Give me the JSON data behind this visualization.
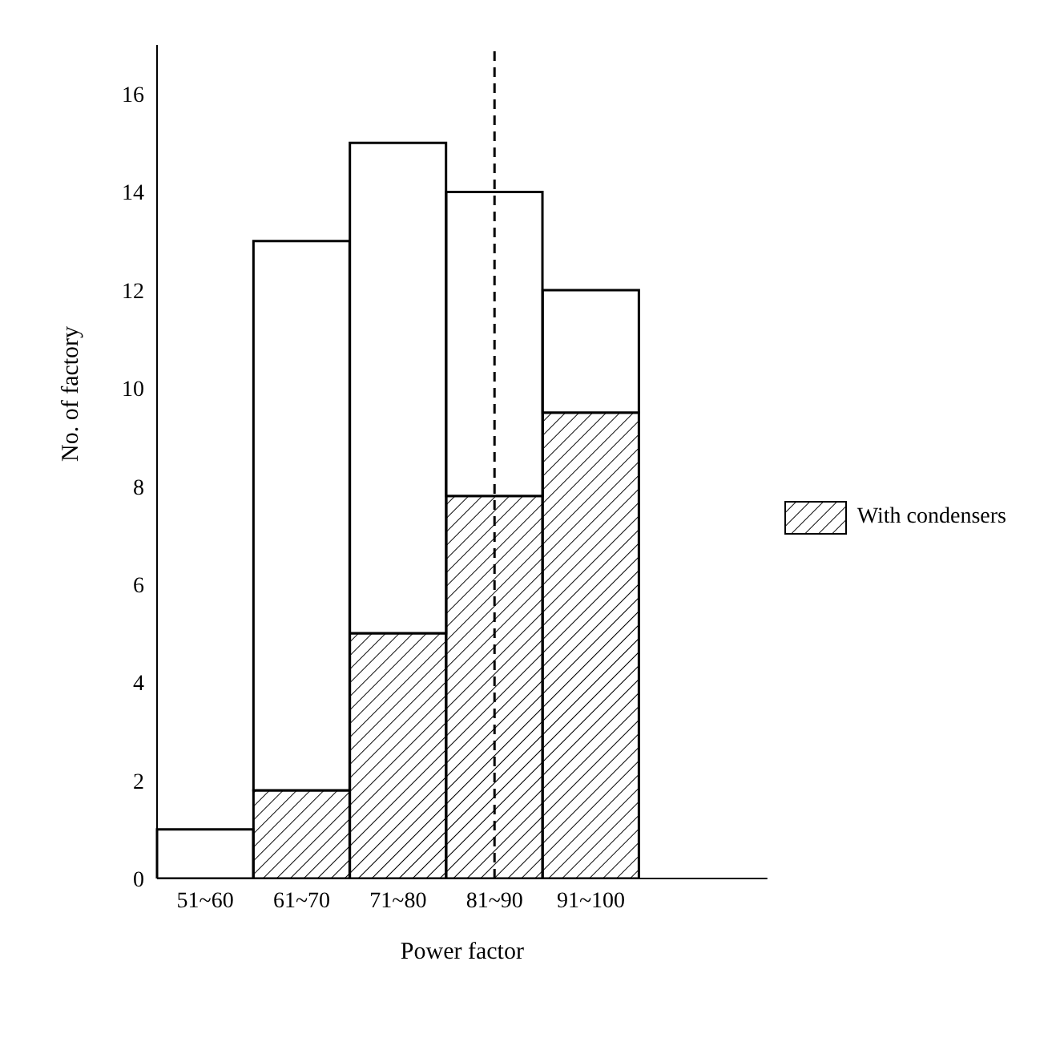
{
  "chart_data": {
    "type": "bar",
    "xlabel": "Power factor",
    "ylabel": "No. of factory",
    "categories": [
      "51~60",
      "61~70",
      "71~80",
      "81~90",
      "91~100"
    ],
    "stacked": true,
    "series": [
      {
        "name": "With condensers",
        "color": "#000000",
        "values": [
          0,
          1.8,
          5,
          7.8,
          9.5
        ]
      },
      {
        "color": "#000000",
        "values": [
          1,
          11.2,
          10,
          6.2,
          2.5
        ]
      }
    ],
    "ylim": [
      0,
      17
    ],
    "yticks": [
      0,
      2,
      4,
      6,
      8,
      10,
      12,
      14,
      16
    ],
    "grid": false,
    "legend": "right",
    "ref_lines": [
      {
        "axis": "x",
        "value": "81~90",
        "line_style": "dashed",
        "color": "#000000"
      }
    ]
  }
}
